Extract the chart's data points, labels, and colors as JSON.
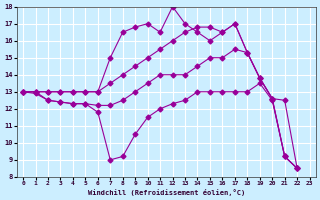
{
  "xlabel": "Windchill (Refroidissement éolien,°C)",
  "background_color": "#cceeff",
  "grid_color": "#ffffff",
  "line_color": "#990099",
  "xlim": [
    -0.5,
    23.5
  ],
  "ylim": [
    8,
    18
  ],
  "xticks": [
    0,
    1,
    2,
    3,
    4,
    5,
    6,
    7,
    8,
    9,
    10,
    11,
    12,
    13,
    14,
    15,
    16,
    17,
    18,
    19,
    20,
    21,
    22,
    23
  ],
  "yticks": [
    8,
    9,
    10,
    11,
    12,
    13,
    14,
    15,
    16,
    17,
    18
  ],
  "x_values": [
    0,
    1,
    2,
    3,
    4,
    5,
    6,
    7,
    8,
    9,
    10,
    11,
    12,
    13,
    14,
    15,
    16,
    17,
    18,
    19,
    20,
    21,
    22
  ],
  "series1_y": [
    13.0,
    12.9,
    12.5,
    12.4,
    12.3,
    12.3,
    11.8,
    9.0,
    9.2,
    10.5,
    11.5,
    12.0,
    12.3,
    12.5,
    13.0,
    13.0,
    13.0,
    13.0,
    13.0,
    13.5,
    12.5,
    9.2,
    8.5
  ],
  "series2_y": [
    13.0,
    13.0,
    12.5,
    12.4,
    12.3,
    12.3,
    12.2,
    12.2,
    12.5,
    13.0,
    13.5,
    14.0,
    14.0,
    14.0,
    14.5,
    15.0,
    15.0,
    15.5,
    15.3,
    13.8,
    12.6,
    12.5,
    8.5
  ],
  "series3_y": [
    13.0,
    13.0,
    13.0,
    13.0,
    13.0,
    13.0,
    13.0,
    15.0,
    16.5,
    16.8,
    17.0,
    16.5,
    18.0,
    17.0,
    16.5,
    16.0,
    16.5,
    17.0,
    15.3,
    13.8,
    12.6,
    9.2,
    8.5
  ],
  "series4_y": [
    13.0,
    13.0,
    13.0,
    13.0,
    13.0,
    13.0,
    13.0,
    13.5,
    14.0,
    14.5,
    15.0,
    15.5,
    16.0,
    16.5,
    16.8,
    16.8,
    16.5,
    17.0,
    15.3,
    13.8,
    12.6,
    9.2,
    8.5
  ]
}
